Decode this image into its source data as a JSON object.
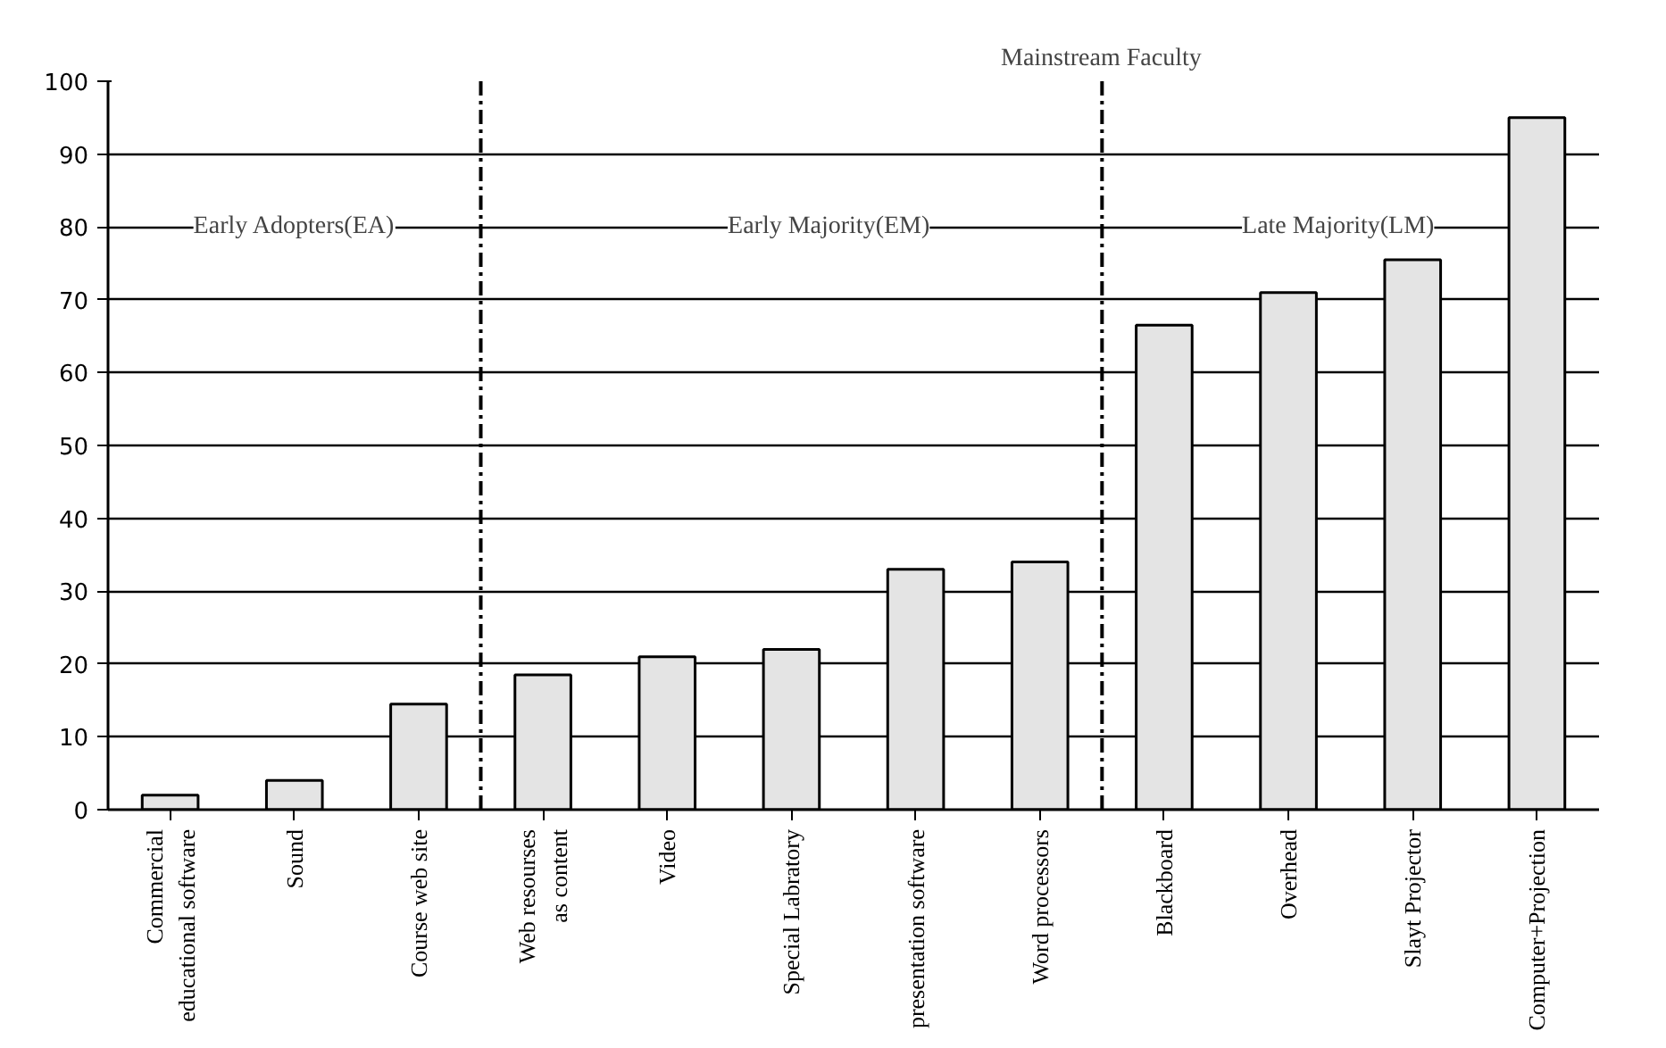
{
  "chart_data": {
    "type": "bar",
    "categories": [
      "Commercial educational software",
      "Sound",
      "Course web site",
      "Web resourses as content",
      "Video",
      "Special Labratory",
      "presentation software",
      "Word processors",
      "Blackboard",
      "Overhead",
      "Slayt Projector",
      "Computer+Projection"
    ],
    "values": [
      2,
      4,
      14.5,
      18.5,
      21,
      22,
      33,
      34,
      66.5,
      71,
      75.5,
      95
    ],
    "color": "#e4e4e4",
    "ylim": [
      0,
      100
    ],
    "yticks": [
      0,
      10,
      20,
      30,
      40,
      50,
      60,
      70,
      80,
      90,
      100
    ],
    "grid": "y",
    "annotations": [
      "Early Adopters(EA)",
      "Early Majority(EM)",
      "Late Majority(LM)",
      "Mainstream Faculty"
    ]
  }
}
